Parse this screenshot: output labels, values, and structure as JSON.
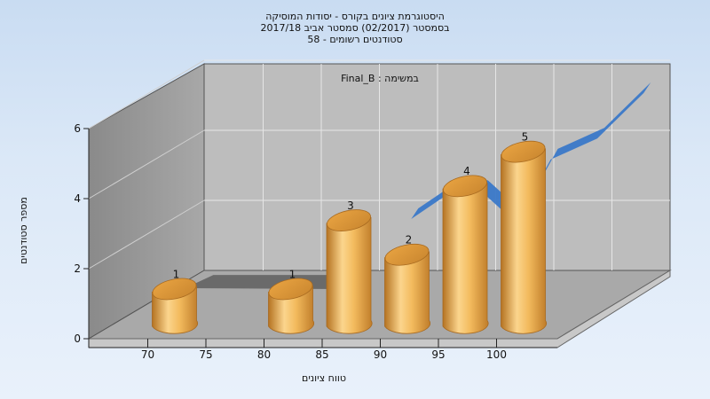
{
  "title": {
    "line1": "היסטוגרמת ציונים בקורס - יסודות המוסיקה",
    "line2": "בסמסטר  (02/2017)  סמסטר אביב 2017/18",
    "line3": "סטודנטים רשומים - 58"
  },
  "chart_data": {
    "type": "bar",
    "annotation": "במשימה : Final_B",
    "xlabel": "טווח ציונים",
    "ylabel": "מספר סטודנטים",
    "x_ticks": [
      "70",
      "75",
      "80",
      "85",
      "90",
      "95",
      "100"
    ],
    "ylim": [
      0,
      6
    ],
    "y_ticks": [
      "0",
      "2",
      "4",
      "6"
    ],
    "grid": true,
    "bars": [
      {
        "x": 70,
        "value": 1,
        "label": "1"
      },
      {
        "x": 80,
        "value": 1,
        "label": "1"
      },
      {
        "x": 85,
        "value": 3,
        "label": "3"
      },
      {
        "x": 90,
        "value": 2,
        "label": "2"
      },
      {
        "x": 95,
        "value": 4,
        "label": "4"
      },
      {
        "x": 100,
        "value": 5,
        "label": "5"
      }
    ],
    "colors": {
      "bar": "#e8a53f",
      "bar_light": "#fbd58d",
      "ribbon": "#3a78c8",
      "shadow_ribbon": "#6a6a6a"
    }
  }
}
